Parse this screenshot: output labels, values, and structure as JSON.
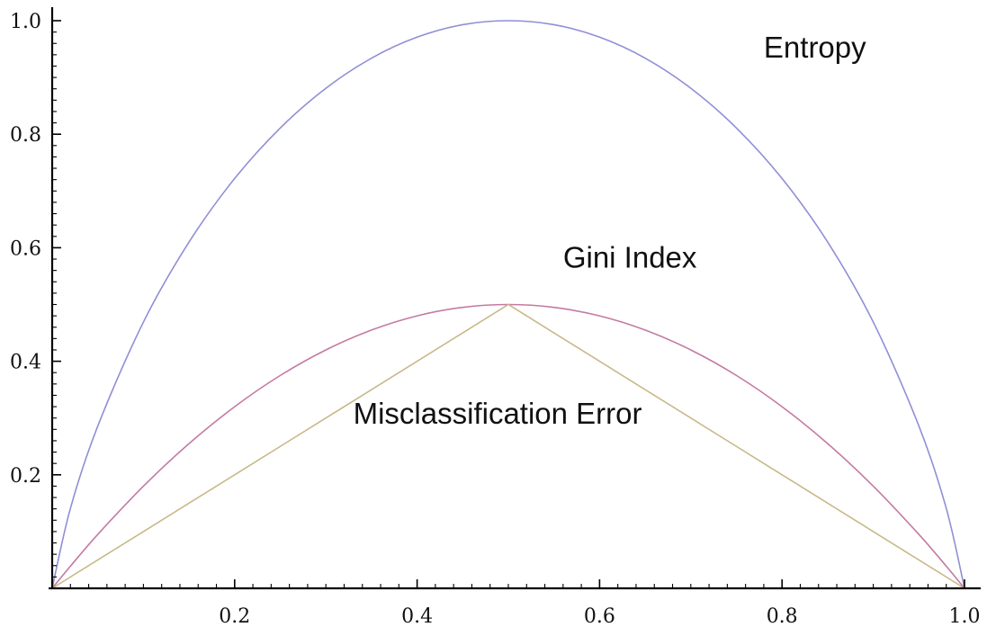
{
  "chart_data": {
    "type": "line",
    "title": "",
    "xlabel": "",
    "ylabel": "",
    "xlim": [
      0,
      1
    ],
    "ylim": [
      0,
      1
    ],
    "grid": false,
    "x_ticks": [
      0.2,
      0.4,
      0.6,
      0.8,
      1.0
    ],
    "x_tick_labels": [
      "0.2",
      "0.4",
      "0.6",
      "0.8",
      "1.0"
    ],
    "y_ticks": [
      0.2,
      0.4,
      0.6,
      0.8,
      1.0
    ],
    "y_tick_labels": [
      "0.2",
      "0.4",
      "0.6",
      "0.8",
      "1.0"
    ],
    "x": [
      0,
      0.02,
      0.05,
      0.1,
      0.15,
      0.2,
      0.25,
      0.3,
      0.35,
      0.4,
      0.45,
      0.5,
      0.55,
      0.6,
      0.65,
      0.7,
      0.75,
      0.8,
      0.85,
      0.9,
      0.95,
      0.98,
      1.0
    ],
    "series": [
      {
        "id": "entropy",
        "color": "#8f8fd6",
        "values": [
          0,
          0.141,
          0.286,
          0.469,
          0.61,
          0.722,
          0.811,
          0.881,
          0.934,
          0.971,
          0.993,
          1.0,
          0.993,
          0.971,
          0.934,
          0.881,
          0.811,
          0.722,
          0.61,
          0.469,
          0.286,
          0.141,
          0
        ]
      },
      {
        "id": "gini",
        "color": "#c47aa3",
        "values": [
          0,
          0.039,
          0.095,
          0.18,
          0.255,
          0.32,
          0.375,
          0.42,
          0.455,
          0.48,
          0.495,
          0.5,
          0.495,
          0.48,
          0.455,
          0.42,
          0.375,
          0.32,
          0.255,
          0.18,
          0.095,
          0.039,
          0
        ]
      },
      {
        "id": "misclassification",
        "color": "#c8b98a",
        "values": [
          0,
          0.02,
          0.05,
          0.1,
          0.15,
          0.2,
          0.25,
          0.3,
          0.35,
          0.4,
          0.45,
          0.5,
          0.45,
          0.4,
          0.35,
          0.3,
          0.25,
          0.2,
          0.15,
          0.1,
          0.05,
          0.02,
          0
        ]
      }
    ],
    "annotations": [
      {
        "id": "entropy",
        "text": "Entropy",
        "x": 0.78,
        "y": 0.935
      },
      {
        "id": "gini",
        "text": "Gini Index",
        "x": 0.56,
        "y": 0.565
      },
      {
        "id": "misclassification",
        "text": "Misclassification Error",
        "x": 0.33,
        "y": 0.29
      }
    ]
  }
}
